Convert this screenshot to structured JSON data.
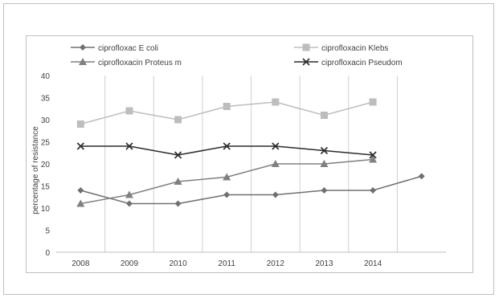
{
  "chart_data": {
    "type": "line",
    "ylabel": "percentage of resistance",
    "xlabel": "",
    "ylim": [
      0,
      40
    ],
    "yticks": [
      "0",
      "5",
      "10",
      "15",
      "20",
      "25",
      "30",
      "35",
      "40"
    ],
    "categories": [
      "2008",
      "2009",
      "2010",
      "2011",
      "2012",
      "2013",
      "2014",
      ""
    ],
    "grid": "vertical",
    "legend_position": "top",
    "series": [
      {
        "name": "ciprofloxac E coli",
        "marker": "diamond",
        "color": "#707070",
        "values": [
          14,
          11,
          11,
          13,
          13,
          14,
          14,
          17.2
        ]
      },
      {
        "name": "ciprofloxacin Klebs",
        "marker": "square",
        "color": "#bdbdbd",
        "values": [
          29,
          32,
          30,
          33,
          34,
          31,
          34,
          null
        ]
      },
      {
        "name": "ciprofloxacin Proteus m",
        "marker": "triangle",
        "color": "#808080",
        "values": [
          11,
          13,
          16,
          17,
          20,
          20,
          21,
          null
        ]
      },
      {
        "name": "ciprofloxacin Pseudom",
        "marker": "x",
        "color": "#2b2b2b",
        "values": [
          24,
          24,
          22,
          24,
          24,
          23,
          22,
          null
        ]
      }
    ]
  }
}
